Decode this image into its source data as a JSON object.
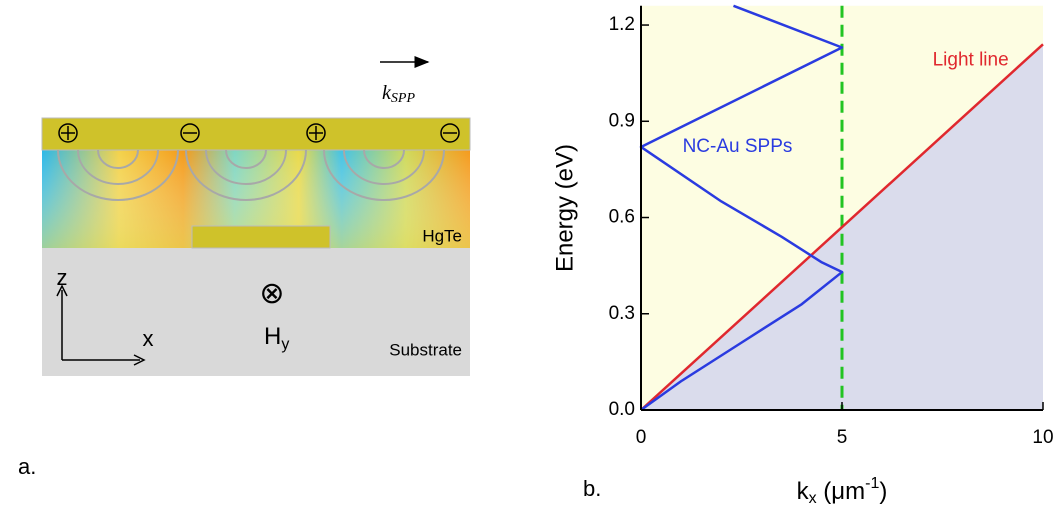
{
  "panel_a": {
    "label": "a.",
    "wave_vector": "k",
    "wave_vector_sub": "SPP",
    "layer_top": "HgTe",
    "layer_bottom": "Substrate",
    "axis_z": "z",
    "axis_x": "x",
    "field_symbol": "⊗",
    "field": "H",
    "field_sub": "y"
  },
  "chart_data": {
    "type": "line",
    "panel_label": "b.",
    "ylabel": "Energy (eV)",
    "xlabel": "k",
    "xlabel_sub": "x",
    "xlabel_mid": " (μm",
    "xlabel_sup": "-1",
    "xlabel_end": ")",
    "xlim": [
      0,
      10
    ],
    "ylim": [
      0,
      1.26
    ],
    "xticks": [
      0,
      5,
      10
    ],
    "yticks": [
      {
        "value": 0,
        "label": "0.0"
      },
      0.3,
      0.6,
      0.9,
      1.2
    ],
    "background": "#fdfde2",
    "series": [
      {
        "name": "Light line",
        "color": "#e0282e",
        "fill_below": "#dadcec",
        "x": [
          0,
          10
        ],
        "values": [
          0,
          1.14
        ]
      },
      {
        "name": "NC-Au SPPs",
        "color": "#2a3be0",
        "x": [
          0,
          1,
          2.5,
          4,
          5,
          4.5,
          3.5,
          2,
          0,
          5,
          2.3
        ],
        "values": [
          0,
          0.09,
          0.21,
          0.33,
          0.43,
          0.46,
          0.54,
          0.65,
          0.82,
          1.13,
          1.26
        ]
      }
    ],
    "vline": {
      "x": 5,
      "color": "#22c422"
    }
  }
}
